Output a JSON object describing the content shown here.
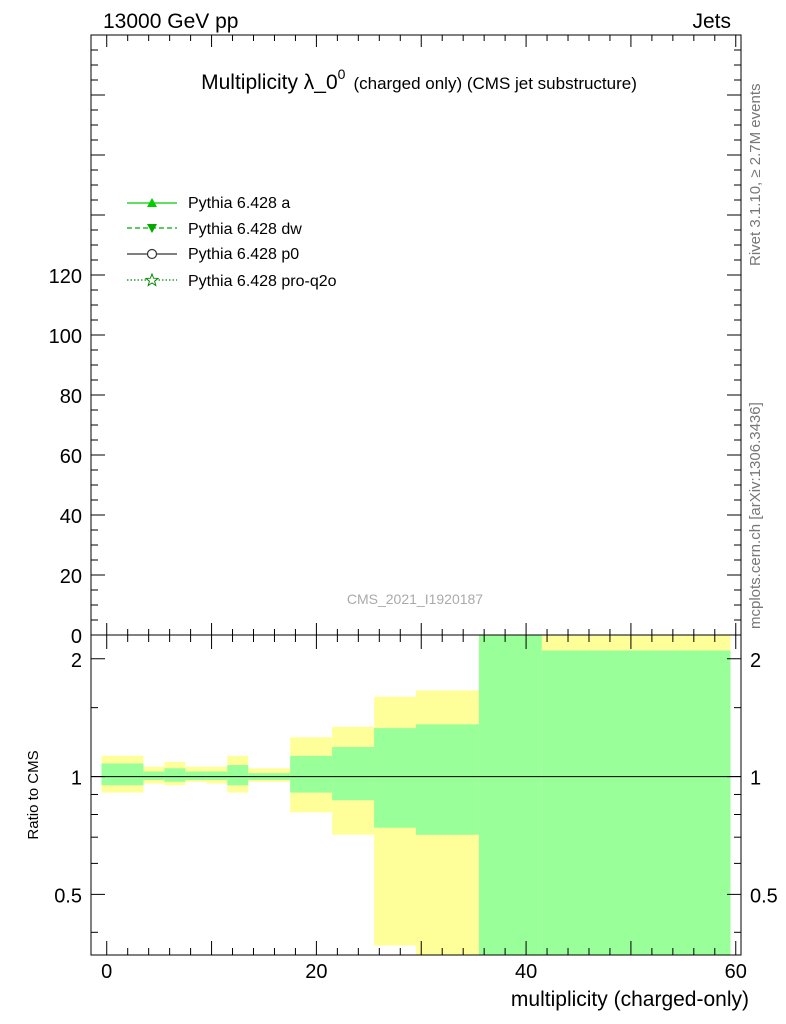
{
  "header": {
    "energy_label": "13000 GeV pp",
    "category_label": "Jets"
  },
  "side_labels": {
    "rivet": "Rivet 3.1.10, ≥ 2.7M events",
    "mcplots": "mcplots.cern.ch [arXiv:1306.3436]"
  },
  "watermark": "CMS_2021_I1920187",
  "colors": {
    "yellow_band": "#ffff99",
    "green_band": "#99ff99",
    "legend_a": "#00cc00",
    "legend_dw": "#00aa00",
    "legend_p0": "#333333",
    "legend_proq2o": "#008800"
  },
  "chart_data": [
    {
      "type": "line",
      "panel": "main",
      "title_main": "Multiplicity λ_0",
      "title_sup": "0",
      "title_rest": "(charged only) (CMS jet substructure)",
      "xlabel": "",
      "ylabel": "",
      "xlim": [
        -1.5,
        60.5
      ],
      "ylim": [
        0,
        200
      ],
      "yticks": [
        0,
        20,
        40,
        60,
        80,
        100,
        120
      ],
      "ytick_labels": [
        "0",
        "20",
        "40",
        "60",
        "80",
        "100",
        "120"
      ],
      "legend_position": "top-left",
      "series": [
        {
          "name": "Pythia 6.428 a",
          "marker": "triangle-up",
          "line": "solid",
          "values": []
        },
        {
          "name": "Pythia 6.428 dw",
          "marker": "triangle-down",
          "line": "dashed",
          "values": []
        },
        {
          "name": "Pythia 6.428 p0",
          "marker": "circle",
          "line": "solid",
          "values": []
        },
        {
          "name": "Pythia 6.428 pro-q2o",
          "marker": "star",
          "line": "dotted",
          "values": []
        }
      ]
    },
    {
      "type": "area",
      "panel": "ratio",
      "xlabel": "multiplicity (charged-only)",
      "ylabel": "Ratio to CMS",
      "xlim": [
        -1.5,
        60.5
      ],
      "ylim": [
        0.35,
        2.3
      ],
      "scale": "log",
      "xticks": [
        0,
        20,
        40,
        60
      ],
      "xtick_labels": [
        "0",
        "20",
        "40",
        "60"
      ],
      "yticks": [
        0.5,
        1,
        2
      ],
      "ytick_labels": [
        "0.5",
        "1",
        "2"
      ],
      "reference_line": 1,
      "bins": [
        {
          "x0": -0.5,
          "x1": 3.5,
          "y_lo": 0.91,
          "y_hi": 1.13,
          "g_lo": 0.95,
          "g_hi": 1.08
        },
        {
          "x0": 3.5,
          "x1": 5.5,
          "y_lo": 0.96,
          "y_hi": 1.06,
          "g_lo": 0.98,
          "g_hi": 1.03
        },
        {
          "x0": 5.5,
          "x1": 7.5,
          "y_lo": 0.95,
          "y_hi": 1.09,
          "g_lo": 0.97,
          "g_hi": 1.05
        },
        {
          "x0": 7.5,
          "x1": 9.5,
          "y_lo": 0.97,
          "y_hi": 1.06,
          "g_lo": 0.98,
          "g_hi": 1.03
        },
        {
          "x0": 9.5,
          "x1": 11.5,
          "y_lo": 0.96,
          "y_hi": 1.06,
          "g_lo": 0.98,
          "g_hi": 1.03
        },
        {
          "x0": 11.5,
          "x1": 13.5,
          "y_lo": 0.91,
          "y_hi": 1.13,
          "g_lo": 0.95,
          "g_hi": 1.07
        },
        {
          "x0": 13.5,
          "x1": 17.5,
          "y_lo": 0.97,
          "y_hi": 1.05,
          "g_lo": 0.98,
          "g_hi": 1.02
        },
        {
          "x0": 17.5,
          "x1": 21.5,
          "y_lo": 0.81,
          "y_hi": 1.26,
          "g_lo": 0.91,
          "g_hi": 1.13
        },
        {
          "x0": 21.5,
          "x1": 25.5,
          "y_lo": 0.71,
          "y_hi": 1.34,
          "g_lo": 0.87,
          "g_hi": 1.19
        },
        {
          "x0": 25.5,
          "x1": 29.5,
          "y_lo": 0.37,
          "y_hi": 1.6,
          "g_lo": 0.74,
          "g_hi": 1.33
        },
        {
          "x0": 29.5,
          "x1": 35.5,
          "y_lo": 0.35,
          "y_hi": 1.66,
          "g_lo": 0.71,
          "g_hi": 1.36
        },
        {
          "x0": 35.5,
          "x1": 41.5,
          "y_lo": 0.35,
          "y_hi": 2.3,
          "g_lo": 0.35,
          "g_hi": 2.3
        },
        {
          "x0": 41.5,
          "x1": 59.5,
          "y_lo": 0.35,
          "y_hi": 2.3,
          "g_lo": 0.35,
          "g_hi": 2.1
        }
      ]
    }
  ]
}
